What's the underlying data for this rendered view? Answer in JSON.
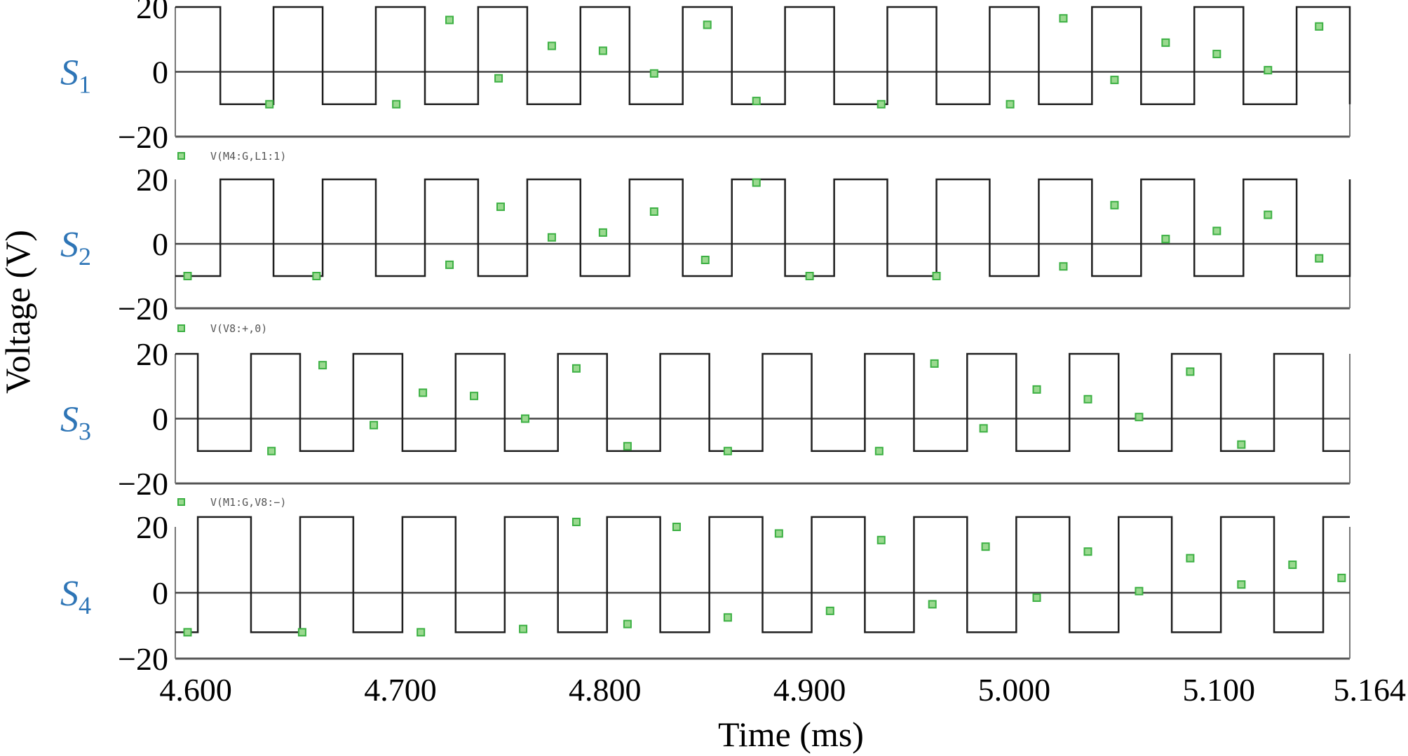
{
  "chart_data": {
    "type": "line",
    "xlabel": "Time (ms)",
    "ylabel": "Voltage (V)",
    "xlim": [
      4.59,
      5.164
    ],
    "x_ticks": [
      "4.600",
      "4.700",
      "4.800",
      "4.900",
      "5.000",
      "5.100",
      "5.164"
    ],
    "x_tick_values": [
      4.6,
      4.7,
      4.8,
      4.9,
      5.0,
      5.1,
      5.164
    ],
    "grid": false,
    "colors": {
      "waveform": "#1f1f1f",
      "marker": "#3cb043",
      "label": "#2e75b6"
    },
    "panels": [
      {
        "label": "S",
        "label_sub": "1",
        "legend": "",
        "y_ticks": [
          "20",
          "0",
          "−20"
        ],
        "ylim": [
          -20,
          20
        ],
        "levels": [
          -10,
          20
        ],
        "edges": [
          4.612,
          4.638,
          4.662,
          4.688,
          4.712,
          4.738,
          4.762,
          4.788,
          4.812,
          4.838,
          4.862,
          4.888,
          4.912,
          4.938,
          4.962,
          4.988,
          5.012,
          5.038,
          5.062,
          5.088,
          5.112,
          5.138,
          5.164
        ],
        "start_high": true,
        "markers": {
          "x": [
            4.636,
            4.698,
            4.724,
            4.748,
            4.774,
            4.799,
            4.824,
            4.85,
            4.874,
            4.935,
            4.998,
            5.024,
            5.049,
            5.074,
            5.099,
            5.124,
            5.149
          ],
          "y": [
            -10,
            -10,
            16,
            -2,
            8,
            6.5,
            -0.5,
            14.5,
            -9,
            -10,
            -10,
            16.5,
            -2.5,
            9,
            5.5,
            0.5,
            14
          ]
        }
      },
      {
        "label": "S",
        "label_sub": "2",
        "legend": "V(M4:G,L1:1)",
        "y_ticks": [
          "20",
          "0",
          "−20"
        ],
        "ylim": [
          -20,
          20
        ],
        "levels": [
          -10,
          20
        ],
        "edges": [
          4.612,
          4.638,
          4.662,
          4.688,
          4.712,
          4.738,
          4.762,
          4.788,
          4.812,
          4.838,
          4.862,
          4.888,
          4.912,
          4.938,
          4.962,
          4.988,
          5.012,
          5.038,
          5.062,
          5.088,
          5.112,
          5.138,
          5.164
        ],
        "start_high": false,
        "markers": {
          "x": [
            4.596,
            4.659,
            4.724,
            4.749,
            4.774,
            4.799,
            4.824,
            4.849,
            4.874,
            4.9,
            4.962,
            5.024,
            5.049,
            5.074,
            5.099,
            5.124,
            5.149
          ],
          "y": [
            -10,
            -10,
            -6.5,
            11.5,
            2,
            3.5,
            10,
            -5,
            19,
            -10,
            -10,
            -7,
            12,
            1.5,
            4,
            9,
            -4.5
          ]
        }
      },
      {
        "label": "S",
        "label_sub": "3",
        "legend": "V(V8:+,0)",
        "y_ticks": [
          "20",
          "0",
          "−20"
        ],
        "ylim": [
          -20,
          20
        ],
        "levels": [
          -10,
          20
        ],
        "edges": [
          4.601,
          4.627,
          4.651,
          4.677,
          4.701,
          4.727,
          4.751,
          4.777,
          4.801,
          4.827,
          4.851,
          4.877,
          4.901,
          4.927,
          4.951,
          4.977,
          5.001,
          5.027,
          5.051,
          5.077,
          5.101,
          5.127,
          5.151
        ],
        "start_high": true,
        "markers": {
          "x": [
            4.637,
            4.662,
            4.687,
            4.711,
            4.736,
            4.761,
            4.786,
            4.811,
            4.86,
            4.934,
            4.961,
            4.985,
            5.011,
            5.036,
            5.061,
            5.086,
            5.111
          ],
          "y": [
            -10,
            16.5,
            -2,
            8,
            7,
            0,
            15.5,
            -8.5,
            -10,
            -10,
            17,
            -3,
            9,
            6,
            0.5,
            14.5,
            -8
          ]
        }
      },
      {
        "label": "S",
        "label_sub": "4",
        "legend": "V(M1:G,V8:−)",
        "y_ticks": [
          "20",
          "0",
          "−20"
        ],
        "ylim": [
          -20,
          20
        ],
        "levels": [
          -12,
          23
        ],
        "edges": [
          4.601,
          4.627,
          4.651,
          4.677,
          4.701,
          4.727,
          4.751,
          4.777,
          4.801,
          4.827,
          4.851,
          4.877,
          4.901,
          4.927,
          4.951,
          4.977,
          5.001,
          5.027,
          5.051,
          5.077,
          5.101,
          5.127,
          5.151
        ],
        "start_high": false,
        "markers": {
          "x": [
            4.596,
            4.652,
            4.71,
            4.76,
            4.786,
            4.811,
            4.835,
            4.86,
            4.885,
            4.91,
            4.935,
            4.96,
            4.986,
            5.011,
            5.036,
            5.061,
            5.086,
            5.111,
            5.136,
            5.16
          ],
          "y": [
            -12,
            -12,
            -12,
            -11,
            21.5,
            -9.5,
            20,
            -7.5,
            18,
            -5.5,
            16,
            -3.5,
            14,
            -1.5,
            12.5,
            0.5,
            10.5,
            2.5,
            8.5,
            4.5
          ]
        }
      }
    ]
  }
}
